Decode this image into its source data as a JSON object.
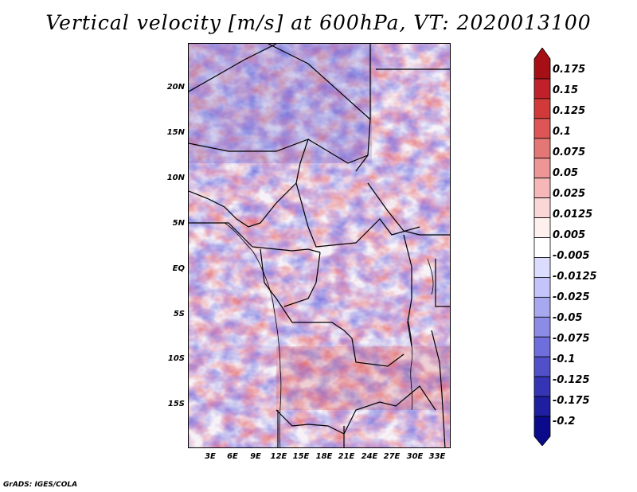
{
  "title": "Vertical velocity [m/s] at 600hPa, VT: 2020013100",
  "lat_labels": [
    "20N",
    "15N",
    "10N",
    "5N",
    "EQ",
    "5S",
    "10S",
    "15S"
  ],
  "lon_labels": [
    "3E",
    "6E",
    "9E",
    "12E",
    "15E",
    "18E",
    "21E",
    "24E",
    "27E",
    "30E",
    "33E"
  ],
  "colorbar": {
    "labels": [
      "0.175",
      "0.15",
      "0.125",
      "0.1",
      "0.075",
      "0.05",
      "0.025",
      "0.0125",
      "0.005",
      "-0.005",
      "-0.0125",
      "-0.025",
      "-0.05",
      "-0.075",
      "-0.1",
      "-0.125",
      "-0.175",
      "-0.2"
    ],
    "colors": [
      "#a50f15",
      "#c0202a",
      "#d23a3a",
      "#dd5555",
      "#e57676",
      "#ee9696",
      "#f5b7b7",
      "#fbd6d6",
      "#fff0f0",
      "#ffffff",
      "#dcdcff",
      "#c4c4fa",
      "#a8a8f0",
      "#8c8ce6",
      "#6e6edc",
      "#5050c8",
      "#3434b4",
      "#1e1ea0",
      "#0a0a8a"
    ]
  },
  "credit": "GrADS: IGES/COLA"
}
